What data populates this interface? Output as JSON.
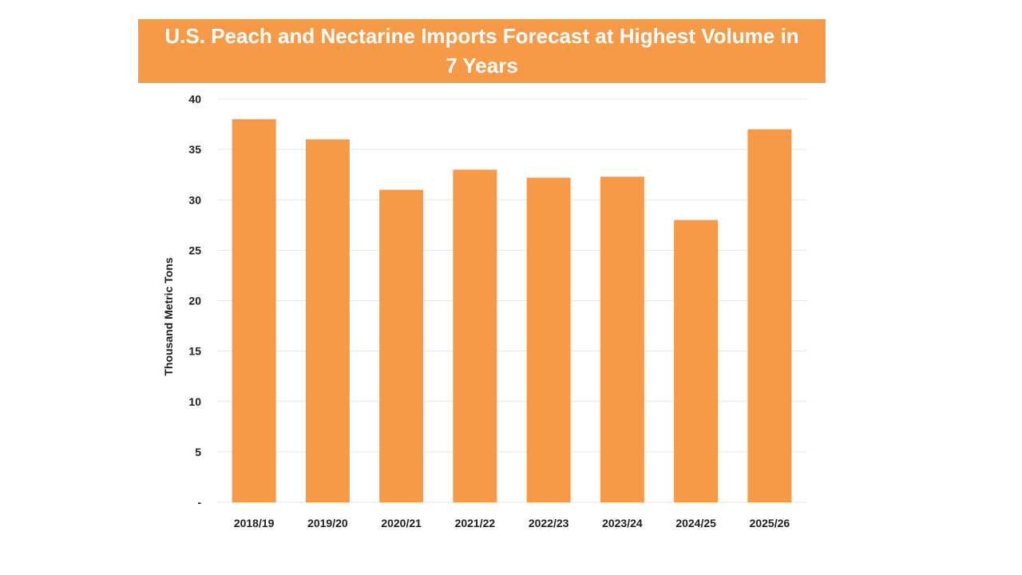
{
  "chart_data": {
    "type": "bar",
    "title": "U.S. Peach and Nectarine Imports Forecast at Highest Volume in 7 Years",
    "xlabel": "",
    "ylabel": "Thousand Metric Tons",
    "categories": [
      "2018/19",
      "2019/20",
      "2020/21",
      "2021/22",
      "2022/23",
      "2023/24",
      "2024/25",
      "2025/26"
    ],
    "values": [
      38,
      36,
      31,
      33,
      32.2,
      32.3,
      28,
      37
    ],
    "ylim": [
      0,
      40
    ],
    "yticks": [
      {
        "value": 0,
        "label": "-"
      },
      {
        "value": 5,
        "label": "5"
      },
      {
        "value": 10,
        "label": "10"
      },
      {
        "value": 15,
        "label": "15"
      },
      {
        "value": 20,
        "label": "20"
      },
      {
        "value": 25,
        "label": "25"
      },
      {
        "value": 30,
        "label": "30"
      },
      {
        "value": 35,
        "label": "35"
      },
      {
        "value": 40,
        "label": "40"
      }
    ],
    "grid": true,
    "legend": "none",
    "colors": {
      "bar": "#f79a47",
      "banner": "#f79a47",
      "grid": "#e6e6e6",
      "text": "#1f1f1f"
    }
  }
}
